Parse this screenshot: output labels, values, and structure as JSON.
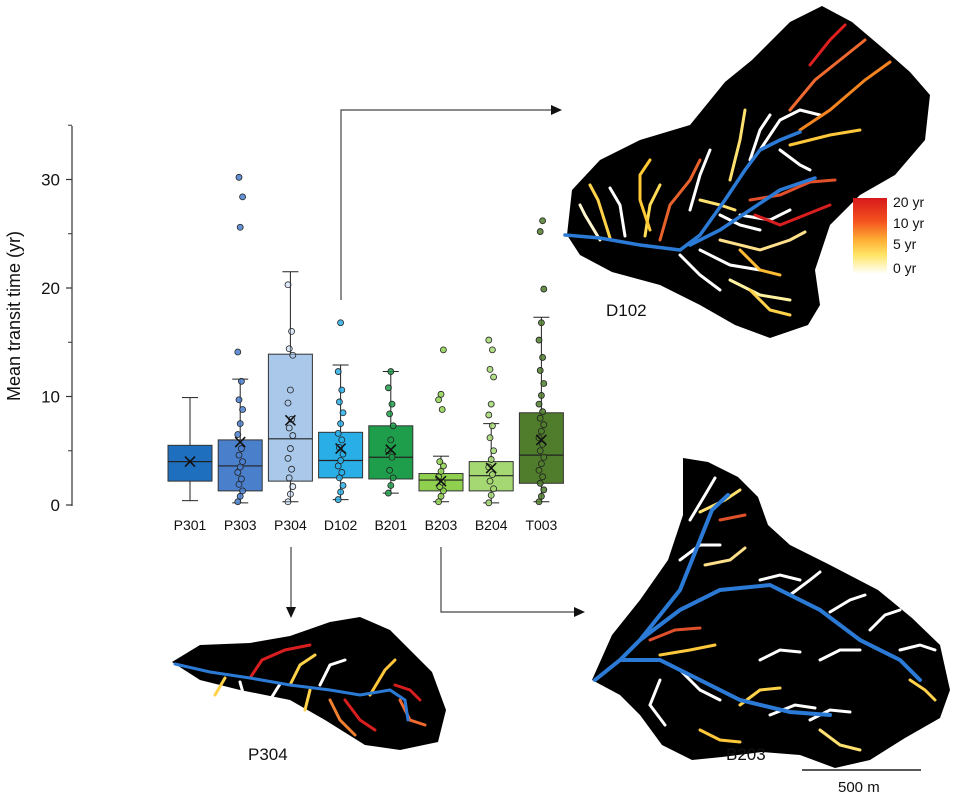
{
  "chart_data": {
    "type": "boxplot",
    "ylabel": "Mean transit time (yr)",
    "ylim": [
      0,
      35
    ],
    "yticks": [
      0,
      10,
      20,
      30
    ],
    "categories": [
      "P301",
      "P303",
      "P304",
      "D102",
      "B201",
      "B203",
      "B204",
      "T003"
    ],
    "boxes": [
      {
        "name": "P301",
        "color": "#1f6fbf",
        "min": 0.4,
        "q1": 2.2,
        "median": 4.0,
        "q3": 5.5,
        "max": 9.9,
        "mean": 4.0,
        "points": []
      },
      {
        "name": "P303",
        "color": "#4a7fcc",
        "min": 0.2,
        "q1": 1.3,
        "median": 3.6,
        "q3": 6.0,
        "max": 11.6,
        "mean": 5.8,
        "points": [
          0.3,
          0.8,
          1.3,
          1.9,
          2.4,
          3.0,
          3.5,
          4.0,
          4.6,
          5.2,
          6.5,
          7.5,
          8.8,
          9.7,
          11.4,
          14.1,
          25.6,
          28.4,
          30.2
        ]
      },
      {
        "name": "P304",
        "color": "#a9c8ea",
        "min": 0.3,
        "q1": 2.2,
        "median": 6.1,
        "q3": 13.9,
        "max": 21.5,
        "mean": 7.8,
        "points": [
          0.3,
          1.0,
          1.7,
          2.5,
          3.3,
          4.3,
          5.2,
          6.4,
          7.1,
          7.9,
          9.4,
          10.6,
          13.8,
          14.4,
          16.0,
          20.3
        ]
      },
      {
        "name": "D102",
        "color": "#2aaee8",
        "min": 0.5,
        "q1": 2.5,
        "median": 4.1,
        "q3": 6.7,
        "max": 12.9,
        "mean": 5.2,
        "points": [
          0.5,
          1.2,
          1.8,
          2.5,
          3.0,
          3.6,
          4.1,
          4.7,
          5.3,
          6.0,
          6.6,
          7.5,
          8.5,
          9.5,
          10.6,
          12.3,
          16.8
        ]
      },
      {
        "name": "B201",
        "color": "#1e9e4a",
        "min": 1.1,
        "q1": 2.4,
        "median": 4.4,
        "q3": 7.3,
        "max": 12.3,
        "mean": 5.1,
        "points": [
          1.1,
          1.8,
          2.5,
          3.2,
          4.4,
          5.0,
          6.0,
          7.3,
          8.4,
          9.3,
          10.8,
          12.3
        ]
      },
      {
        "name": "B203",
        "color": "#8fd14f",
        "min": 0.3,
        "q1": 1.3,
        "median": 2.3,
        "q3": 2.9,
        "max": 4.5,
        "mean": 2.2,
        "points": [
          0.3,
          0.8,
          1.3,
          1.7,
          2.1,
          2.6,
          3.1,
          3.6,
          4.0,
          8.8,
          9.7,
          10.2,
          14.3
        ]
      },
      {
        "name": "B204",
        "color": "#a5d873",
        "min": 0.2,
        "q1": 1.3,
        "median": 2.7,
        "q3": 4.0,
        "max": 7.5,
        "mean": 3.4,
        "points": [
          0.2,
          0.9,
          1.5,
          2.2,
          2.8,
          3.5,
          4.2,
          5.0,
          6.2,
          7.3,
          8.3,
          9.3,
          11.8,
          12.5,
          14.3,
          15.2
        ]
      },
      {
        "name": "T003",
        "color": "#4f7d2b",
        "min": 0.3,
        "q1": 2.0,
        "median": 4.6,
        "q3": 8.5,
        "max": 17.3,
        "mean": 6.0,
        "points": [
          0.3,
          0.8,
          1.4,
          2.0,
          2.6,
          3.2,
          3.8,
          4.4,
          5.0,
          5.6,
          6.2,
          6.8,
          7.4,
          8.0,
          8.6,
          9.3,
          10.1,
          11.2,
          12.4,
          13.6,
          15.2,
          16.8,
          19.9,
          25.2,
          26.2
        ]
      }
    ]
  },
  "maps": {
    "d102_label": "D102",
    "p304_label": "P304",
    "b203_label": "B203",
    "scale_label": "500 m"
  },
  "legend": {
    "labels": [
      "20 yr",
      "10 yr",
      "5 yr",
      "0 yr"
    ],
    "colors": [
      "#d7191c",
      "#fdae61",
      "#ffd92f",
      "#ffffff"
    ]
  },
  "colors": {
    "river": "#2b7bd6",
    "catchment": "#000000"
  }
}
